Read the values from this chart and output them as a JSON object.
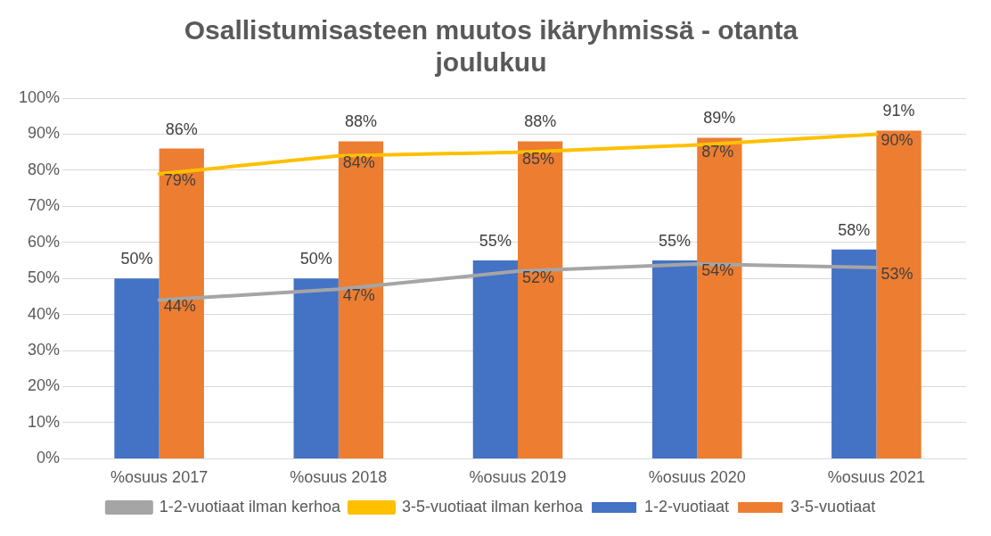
{
  "chart_data": {
    "type": "bar",
    "title": "Osallistumisasteen muutos ikäryhmissä - otanta joulukuu",
    "categories": [
      "%osuus 2017",
      "%osuus 2018",
      "%osuus 2019",
      "%osuus 2020",
      "%osuus 2021"
    ],
    "series": [
      {
        "name": "1-2-vuotiaat",
        "color": "#4472c4",
        "values": [
          50,
          50,
          55,
          55,
          58
        ],
        "value_labels": [
          "50%",
          "50%",
          "55%",
          "55%",
          "58%"
        ]
      },
      {
        "name": "3-5-vuotiaat",
        "color": "#ed7d31",
        "values": [
          86,
          88,
          88,
          89,
          91
        ],
        "value_labels": [
          "86%",
          "88%",
          "88%",
          "89%",
          "91%"
        ]
      },
      {
        "name": "1-2-vuotiaat ilman kerhoa",
        "type": "line",
        "color": "#a5a5a5",
        "values": [
          44,
          47,
          52,
          54,
          53
        ],
        "value_labels": [
          "44%",
          "47%",
          "52%",
          "54%",
          "53%"
        ]
      },
      {
        "name": "3-5-vuotiaat ilman kerhoa",
        "type": "line",
        "color": "#ffc000",
        "values": [
          79,
          84,
          85,
          87,
          90
        ],
        "value_labels": [
          "79%",
          "84%",
          "85%",
          "87%",
          "90%"
        ]
      }
    ],
    "ylim": [
      0,
      100
    ],
    "yticks": [
      {
        "value": 0,
        "label": "0%"
      },
      {
        "value": 10,
        "label": "10%"
      },
      {
        "value": 20,
        "label": "20%"
      },
      {
        "value": 30,
        "label": "30%"
      },
      {
        "value": 40,
        "label": "40%"
      },
      {
        "value": 50,
        "label": "50%"
      },
      {
        "value": 60,
        "label": "60%"
      },
      {
        "value": 70,
        "label": "70%"
      },
      {
        "value": 80,
        "label": "80%"
      },
      {
        "value": 90,
        "label": "90%"
      },
      {
        "value": 100,
        "label": "100%"
      }
    ],
    "grid": "y",
    "legend": "bottom",
    "marker": "none"
  }
}
